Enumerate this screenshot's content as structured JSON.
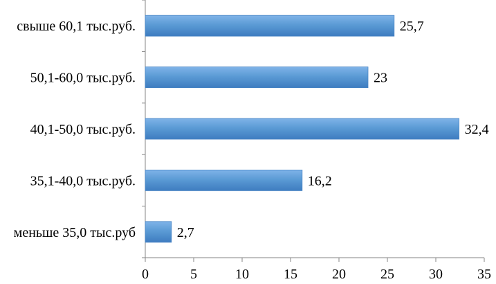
{
  "chart_data": {
    "type": "bar",
    "orientation": "horizontal",
    "categories": [
      "свыше 60,1 тыс.руб.",
      "50,1-60,0 тыс.руб.",
      "40,1-50,0 тыс.руб.",
      "35,1-40,0 тыс.руб.",
      "меньше 35,0 тыс.руб"
    ],
    "values": [
      25.7,
      23,
      32.4,
      16.2,
      2.7
    ],
    "value_labels": [
      "25,7",
      "23",
      "32,4",
      "16,2",
      "2,7"
    ],
    "x_ticks": [
      "0",
      "5",
      "10",
      "15",
      "20",
      "25",
      "30",
      "35"
    ],
    "xlim": [
      0,
      35
    ],
    "grid": false,
    "bar_color": "#5B9BD5",
    "title": "",
    "xlabel": "",
    "ylabel": ""
  }
}
